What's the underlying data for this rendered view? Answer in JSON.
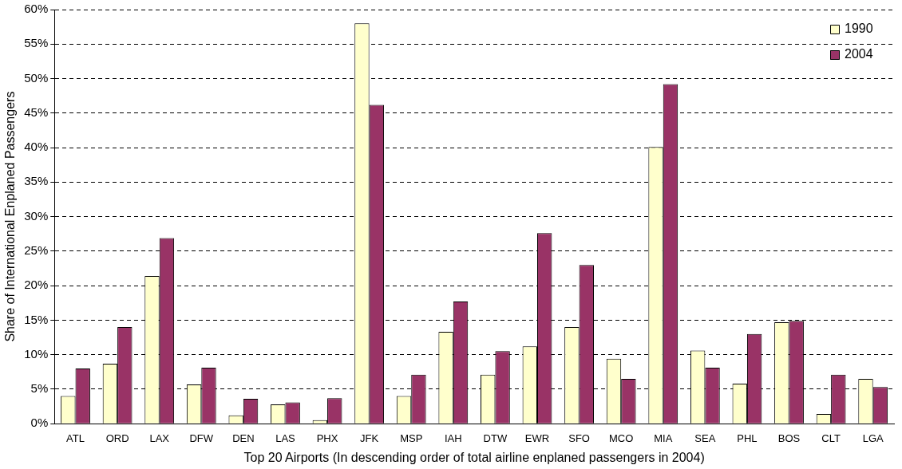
{
  "chart_data": {
    "type": "bar",
    "xlabel": "Top 20 Airports (In descending order of total airline enplaned passengers in 2004)",
    "ylabel": "Share of International Enplaned Passengers",
    "categories": [
      "ATL",
      "ORD",
      "LAX",
      "DFW",
      "DEN",
      "LAS",
      "PHX",
      "JFK",
      "MSP",
      "IAH",
      "DTW",
      "EWR",
      "SFO",
      "MCO",
      "MIA",
      "SEA",
      "PHL",
      "BOS",
      "CLT",
      "LGA"
    ],
    "series": [
      {
        "name": "1990",
        "color": "#ffffcc",
        "values": [
          4.0,
          8.7,
          21.4,
          5.7,
          1.2,
          2.8,
          0.5,
          58.0,
          4.0,
          13.3,
          7.1,
          11.2,
          14.0,
          9.4,
          40.1,
          10.6,
          5.8,
          14.7,
          1.4,
          6.5
        ]
      },
      {
        "name": "2004",
        "color": "#993366",
        "values": [
          8.0,
          14.0,
          26.9,
          8.1,
          3.6,
          3.1,
          3.7,
          46.2,
          7.1,
          17.7,
          10.5,
          27.6,
          23.0,
          6.5,
          49.2,
          8.1,
          13.0,
          14.9,
          7.1,
          5.3
        ]
      }
    ],
    "ylim": [
      0,
      60
    ],
    "yticks": [
      {
        "value": 0,
        "label": "0%"
      },
      {
        "value": 5,
        "label": "5%"
      },
      {
        "value": 10,
        "label": "10%"
      },
      {
        "value": 15,
        "label": "15%"
      },
      {
        "value": 20,
        "label": "20%"
      },
      {
        "value": 25,
        "label": "25%"
      },
      {
        "value": 30,
        "label": "30%"
      },
      {
        "value": 35,
        "label": "35%"
      },
      {
        "value": 40,
        "label": "40%"
      },
      {
        "value": 45,
        "label": "45%"
      },
      {
        "value": 50,
        "label": "50%"
      },
      {
        "value": 55,
        "label": "55%"
      },
      {
        "value": 60,
        "label": "60%"
      }
    ],
    "grid": "y",
    "legend": "top right"
  }
}
